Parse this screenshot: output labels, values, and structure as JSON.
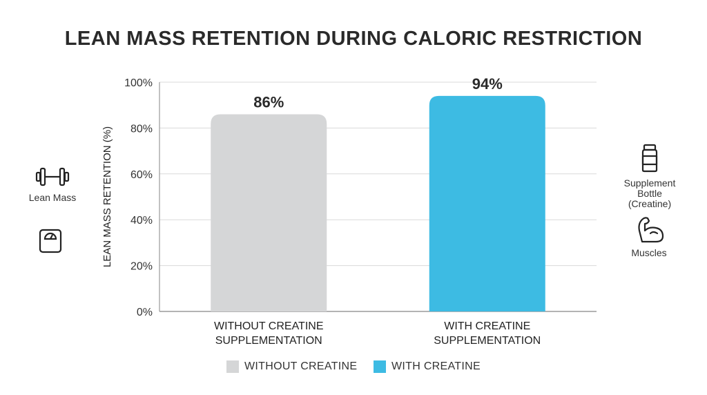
{
  "chart_data": {
    "type": "bar",
    "title": "LEAN MASS RETENTION DURING CALORIC RESTRICTION",
    "ylabel": "LEAN MASS RETENTION (%)",
    "xlabel": "",
    "ylim": [
      0,
      100
    ],
    "yticks": [
      "0%",
      "20%",
      "40%",
      "60%",
      "80%",
      "100%"
    ],
    "categories": [
      [
        "WITHOUT CREATINE",
        "SUPPLEMENTATION"
      ],
      [
        "WITH CREATINE",
        "SUPPLEMENTATION"
      ]
    ],
    "values": [
      86,
      94
    ],
    "value_labels": [
      "86%",
      "94%"
    ],
    "colors": [
      "#d5d6d7",
      "#3dbbe3"
    ],
    "grid": true,
    "legend": [
      {
        "label": "WITHOUT CREATINE",
        "color": "#d5d6d7"
      },
      {
        "label": "WITH CREATINE",
        "color": "#3dbbe3"
      }
    ],
    "legend_position": "bottom"
  },
  "side_icons": {
    "left": [
      {
        "icon": "dumbbell-icon",
        "label": "Lean Mass"
      },
      {
        "icon": "scale-icon",
        "label": ""
      }
    ],
    "right": [
      {
        "icon": "supplement-bottle-icon",
        "label_lines": [
          "Supplement",
          "Bottle",
          "(Creatine)"
        ]
      },
      {
        "icon": "flexed-arm-icon",
        "label": "Muscles"
      }
    ]
  }
}
